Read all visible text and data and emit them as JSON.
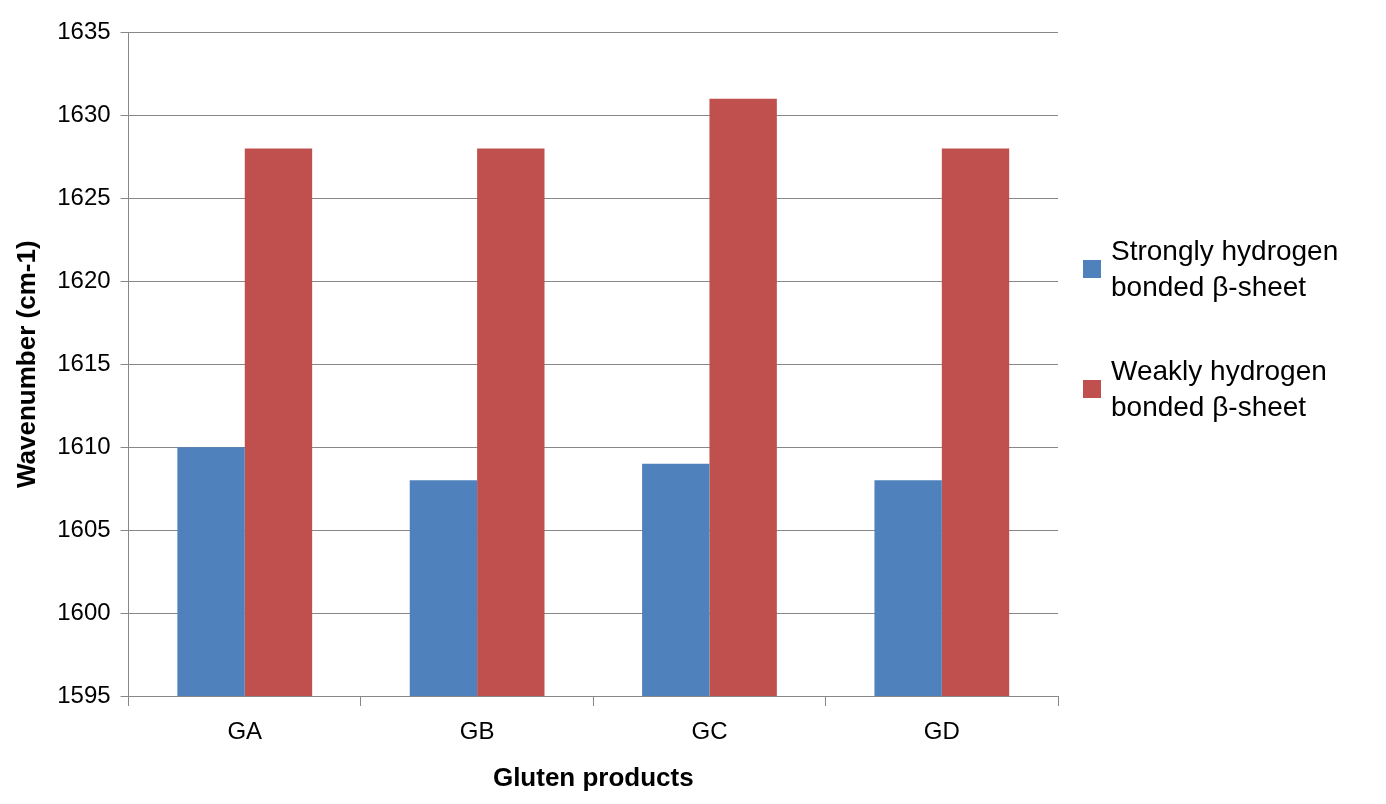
{
  "chart_data": {
    "type": "bar",
    "xlabel": "Gluten products",
    "ylabel": "Wavenumber (cm-1)",
    "categories": [
      "GA",
      "GB",
      "GC",
      "GD"
    ],
    "series": [
      {
        "name": "Strongly hydrogen bonded β-sheet",
        "color": "#4f81bd",
        "values": [
          1610,
          1608,
          1609,
          1608
        ]
      },
      {
        "name": "Weakly hydrogen bonded β-sheet",
        "color": "#c0504d",
        "values": [
          1628,
          1628,
          1631,
          1628
        ]
      }
    ],
    "ylim": [
      1595,
      1635
    ],
    "yticks": [
      1595,
      1600,
      1605,
      1610,
      1615,
      1620,
      1625,
      1630,
      1635
    ],
    "grid": "y",
    "legend": "right"
  }
}
